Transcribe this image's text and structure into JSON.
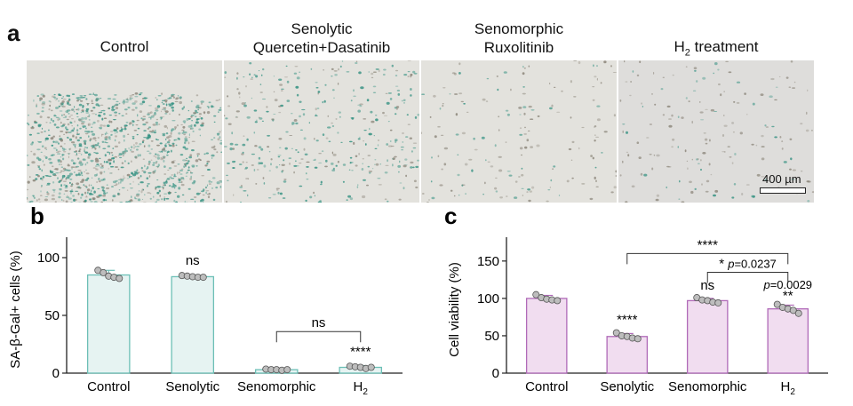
{
  "panel_a": {
    "letter": "a",
    "images": [
      {
        "title_lines": [
          "Control"
        ],
        "stain_density": "high"
      },
      {
        "title_lines": [
          "Senolytic",
          "Quercetin+Dasatinib"
        ],
        "stain_density": "medium"
      },
      {
        "title_lines": [
          "Senomorphic",
          "Ruxolitinib"
        ],
        "stain_density": "low"
      },
      {
        "title_lines": [
          "H",
          "2",
          " treatment"
        ],
        "stain_density": "low"
      }
    ],
    "scale_bar_label": "400 µm",
    "stain_color": "#2f8f7f"
  },
  "chart_data": [
    {
      "panel": "b",
      "type": "bar",
      "ylabel": "SA-β-Gal+ cells (%)",
      "ylim": [
        0,
        110
      ],
      "yticks": [
        0,
        50,
        100
      ],
      "categories": [
        "Control",
        "Senolytic",
        "Senomorphic",
        "H2"
      ],
      "category_labels": [
        [
          "Control"
        ],
        [
          "Senolytic"
        ],
        [
          "Senomorphic"
        ],
        [
          "H",
          "2"
        ]
      ],
      "values": [
        85,
        83.5,
        3,
        5
      ],
      "errors": [
        4,
        1.5,
        1,
        1.5
      ],
      "points": [
        [
          89,
          87,
          84,
          83,
          82
        ],
        [
          84.5,
          84,
          83.5,
          83,
          83
        ],
        [
          3.5,
          3,
          3,
          2.5,
          3
        ],
        [
          6,
          5.5,
          5,
          4,
          5
        ]
      ],
      "bar_fill": "#e6f3f2",
      "bar_edge": "#6cbfb6",
      "annotations": [
        {
          "category": 1,
          "text": "ns",
          "y": 94
        },
        {
          "category": 3,
          "text": "****",
          "y": 15
        }
      ],
      "brackets": [
        {
          "from": 2,
          "to": 3,
          "y": 36,
          "text": "ns"
        }
      ]
    },
    {
      "panel": "c",
      "type": "bar",
      "ylabel": "Cell viability (%)",
      "ylim": [
        0,
        170
      ],
      "yticks": [
        0,
        50,
        100,
        150
      ],
      "categories": [
        "Control",
        "Senolytic",
        "Senomorphic",
        "H2"
      ],
      "category_labels": [
        [
          "Control"
        ],
        [
          "Senolytic"
        ],
        [
          "Senomorphic"
        ],
        [
          "H",
          "2"
        ]
      ],
      "values": [
        100,
        49,
        97,
        86
      ],
      "errors": [
        4,
        4,
        3,
        5
      ],
      "points": [
        [
          105,
          101,
          99,
          98,
          97
        ],
        [
          54,
          50,
          49,
          47,
          46
        ],
        [
          101,
          98,
          97,
          95,
          94
        ],
        [
          92,
          88,
          86,
          84,
          80
        ]
      ],
      "bar_fill": "#f1ddf0",
      "bar_edge": "#b06ab8",
      "annotations": [
        {
          "category": 1,
          "text": "****",
          "y": 66
        },
        {
          "category": 2,
          "text": "ns",
          "y": 112
        },
        {
          "category": 3,
          "text": "**",
          "y": 98
        },
        {
          "category": 3,
          "text": "p=0.0029",
          "y": 113,
          "italic_p": true
        }
      ],
      "brackets": [
        {
          "from": 1,
          "to": 3,
          "y": 160,
          "text": "****"
        },
        {
          "from": 2,
          "to": 3,
          "y": 135,
          "text": "* p=0.0237",
          "italic_p": true
        }
      ]
    }
  ]
}
